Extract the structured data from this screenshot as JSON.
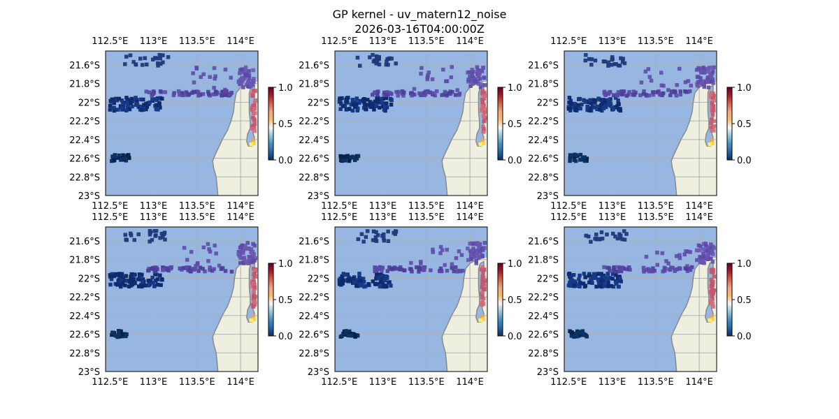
{
  "title_line1": "GP kernel - uv_matern12_noise",
  "title_line2": "2026-03-16T04:00:00Z",
  "colors": {
    "ocean": "#97b6e1",
    "land": "#efefdf",
    "coast": "#8a8a8a",
    "grid": "#b0b0b0",
    "cmap": [
      "#053061",
      "#2166ac",
      "#4393c3",
      "#92c5de",
      "#f7f7f7",
      "#fdb863",
      "#f4a582",
      "#d6604d",
      "#b2182b",
      "#67001f"
    ]
  },
  "chart_data": {
    "type": "map",
    "xlim": [
      112.45,
      114.2
    ],
    "ylim": [
      -23.0,
      -21.45
    ],
    "x_ticks": [
      112.5,
      113.0,
      113.5,
      114.0
    ],
    "y_ticks": [
      -21.6,
      -21.8,
      -22.0,
      -22.2,
      -22.4,
      -22.6,
      -22.8,
      -23.0
    ],
    "x_tick_labels": [
      "112.5°E",
      "113°E",
      "113.5°E",
      "114°E"
    ],
    "y_tick_labels": [
      "21.6°S",
      "21.8°S",
      "22°S",
      "22.2°S",
      "22.4°S",
      "22.6°S",
      "22.8°S",
      "23°S"
    ],
    "colorbar": {
      "range": [
        0.0,
        1.0
      ],
      "ticks": [
        0.0,
        0.5,
        1.0
      ],
      "tick_labels": [
        "0.0",
        "0.5",
        "1.0"
      ]
    },
    "coastline": [
      [
        114.15,
        -21.78
      ],
      [
        114.08,
        -21.8
      ],
      [
        114.0,
        -21.84
      ],
      [
        113.95,
        -21.9
      ],
      [
        113.93,
        -22.0
      ],
      [
        113.92,
        -22.1
      ],
      [
        113.89,
        -22.2
      ],
      [
        113.85,
        -22.3
      ],
      [
        113.8,
        -22.38
      ],
      [
        113.74,
        -22.5
      ],
      [
        113.7,
        -22.58
      ],
      [
        113.68,
        -22.63
      ],
      [
        113.69,
        -22.7
      ],
      [
        113.72,
        -22.8
      ],
      [
        113.73,
        -22.9
      ],
      [
        113.74,
        -23.0
      ]
    ],
    "lagoon": [
      [
        114.16,
        -21.82
      ],
      [
        114.12,
        -21.84
      ],
      [
        114.1,
        -21.9
      ],
      [
        114.1,
        -22.0
      ],
      [
        114.1,
        -22.1
      ],
      [
        114.11,
        -22.2
      ],
      [
        114.11,
        -22.28
      ],
      [
        114.08,
        -22.34
      ],
      [
        114.07,
        -22.42
      ],
      [
        114.09,
        -22.47
      ],
      [
        114.13,
        -22.47
      ],
      [
        114.16,
        -22.44
      ],
      [
        114.16,
        -22.38
      ],
      [
        114.14,
        -22.32
      ],
      [
        114.15,
        -22.26
      ],
      [
        114.16,
        -22.2
      ]
    ],
    "panels": [
      {
        "row": 0,
        "col": 0
      },
      {
        "row": 0,
        "col": 1
      },
      {
        "row": 0,
        "col": 2
      },
      {
        "row": 1,
        "col": 0
      },
      {
        "row": 1,
        "col": 1
      },
      {
        "row": 1,
        "col": 2
      }
    ]
  }
}
